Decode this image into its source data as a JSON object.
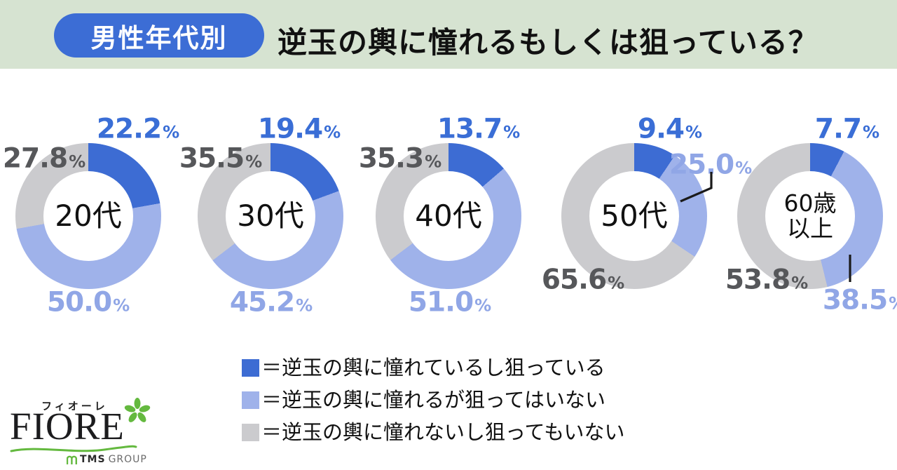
{
  "header": {
    "badge": "男性年代別",
    "title": "逆玉の輿に憧れるもしくは狙っている？"
  },
  "colors": {
    "header_bg": "#d6e3d1",
    "badge_blue": "#3c6dd5",
    "segment_blue": "#3d6cd3",
    "segment_light_blue": "#9fb2ea",
    "segment_gray": "#cbcbce",
    "label_blue": "#3a6ed6",
    "label_light_blue": "#90a6e6",
    "label_gray": "#56575a",
    "leader_black": "#1a1a1a",
    "logo_green": "#64b93f"
  },
  "chart_data": {
    "type": "pie",
    "subtype": "donut-small-multiples",
    "title": "逆玉の輿に憧れるもしくは狙っている？（男性年代別）",
    "legend_position": "bottom",
    "series_labels": [
      "逆玉の輿に憧れているし狙っている",
      "逆玉の輿に憧れるが狙ってはいない",
      "逆玉の輿に憧れないし狙ってもいない"
    ],
    "charts": [
      {
        "label": "20代",
        "center_lines": [
          "20代"
        ],
        "values": [
          22.2,
          50.0,
          27.8
        ]
      },
      {
        "label": "30代",
        "center_lines": [
          "30代"
        ],
        "values": [
          19.4,
          45.2,
          35.5
        ]
      },
      {
        "label": "40代",
        "center_lines": [
          "40代"
        ],
        "values": [
          13.7,
          51.0,
          35.3
        ]
      },
      {
        "label": "50代",
        "center_lines": [
          "50代"
        ],
        "values": [
          9.4,
          25.0,
          65.6
        ]
      },
      {
        "label": "60歳以上",
        "center_lines": [
          "60歳",
          "以上"
        ],
        "values": [
          7.7,
          38.5,
          53.8
        ]
      }
    ]
  },
  "legend": {
    "items": [
      {
        "label": "＝逆玉の輿に憧れているし狙っている"
      },
      {
        "label": "＝逆玉の輿に憧れるが狙ってはいない"
      },
      {
        "label": "＝逆玉の輿に憧れないし狙ってもいない"
      }
    ]
  },
  "logo": {
    "kana": "フィオーレ",
    "name": "FIORE",
    "group_tms": "TMS",
    "group_rest": "GROUP"
  }
}
